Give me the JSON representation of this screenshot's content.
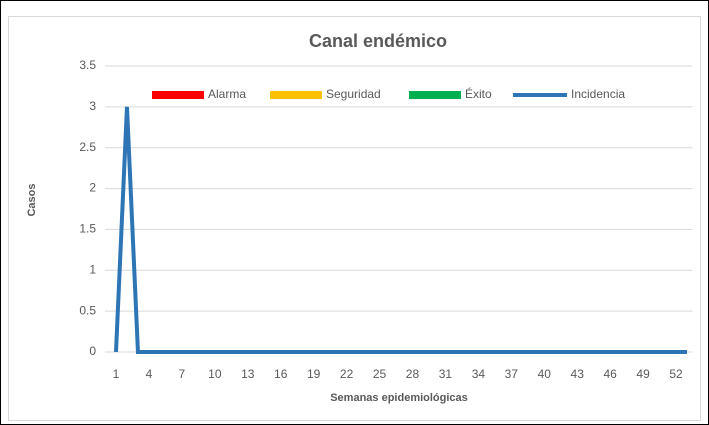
{
  "chart_data": {
    "type": "line",
    "title": "Canal endémico",
    "y_label": "Casos",
    "x_label": "Semanas epidemiológicas",
    "categories": [
      "1",
      null,
      null,
      "4",
      null,
      null,
      "7",
      null,
      null,
      "10",
      null,
      null,
      "13",
      null,
      null,
      "16",
      null,
      null,
      "19",
      null,
      null,
      "22",
      null,
      null,
      "25",
      null,
      null,
      "28",
      null,
      null,
      "31",
      null,
      null,
      "34",
      null,
      null,
      "37",
      null,
      null,
      "40",
      null,
      null,
      "43",
      null,
      null,
      "46",
      null,
      null,
      "49",
      null,
      null,
      "52",
      null
    ],
    "series": [
      {
        "name": "Alarma",
        "type": "area",
        "color": "#ff0000",
        "values": [
          0,
          0,
          0,
          0,
          0,
          0,
          0,
          0,
          0,
          0,
          0,
          0,
          0,
          0,
          0,
          0,
          0,
          0,
          0,
          0,
          0,
          0,
          0,
          0,
          0,
          0,
          0,
          0,
          0,
          0,
          0,
          0,
          0,
          0,
          0,
          0,
          0,
          0,
          0,
          0,
          0,
          0,
          0,
          0,
          0,
          0,
          0,
          0,
          0,
          0,
          0,
          0,
          0
        ]
      },
      {
        "name": "Seguridad",
        "type": "area",
        "color": "#ffc000",
        "values": [
          0,
          0,
          0,
          0,
          0,
          0,
          0,
          0,
          0,
          0,
          0,
          0,
          0,
          0,
          0,
          0,
          0,
          0,
          0,
          0,
          0,
          0,
          0,
          0,
          0,
          0,
          0,
          0,
          0,
          0,
          0,
          0,
          0,
          0,
          0,
          0,
          0,
          0,
          0,
          0,
          0,
          0,
          0,
          0,
          0,
          0,
          0,
          0,
          0,
          0,
          0,
          0,
          0
        ]
      },
      {
        "name": "Éxito",
        "type": "area",
        "color": "#00b050",
        "values": [
          0,
          0,
          0,
          0,
          0,
          0,
          0,
          0,
          0,
          0,
          0,
          0,
          0,
          0,
          0,
          0,
          0,
          0,
          0,
          0,
          0,
          0,
          0,
          0,
          0,
          0,
          0,
          0,
          0,
          0,
          0,
          0,
          0,
          0,
          0,
          0,
          0,
          0,
          0,
          0,
          0,
          0,
          0,
          0,
          0,
          0,
          0,
          0,
          0,
          0,
          0,
          0,
          0
        ]
      },
      {
        "name": "Incidencia",
        "type": "line",
        "color": "#2e75b6",
        "values": [
          0,
          3,
          0,
          0,
          0,
          0,
          0,
          0,
          0,
          0,
          0,
          0,
          0,
          0,
          0,
          0,
          0,
          0,
          0,
          0,
          0,
          0,
          0,
          0,
          0,
          0,
          0,
          0,
          0,
          0,
          0,
          0,
          0,
          0,
          0,
          0,
          0,
          0,
          0,
          0,
          0,
          0,
          0,
          0,
          0,
          0,
          0,
          0,
          0,
          0,
          0,
          0,
          0
        ]
      }
    ],
    "ylim": [
      0,
      3.5
    ],
    "yticks": [
      0,
      0.5,
      1,
      1.5,
      2,
      2.5,
      3,
      3.5
    ],
    "grid": true,
    "legend": "top"
  }
}
